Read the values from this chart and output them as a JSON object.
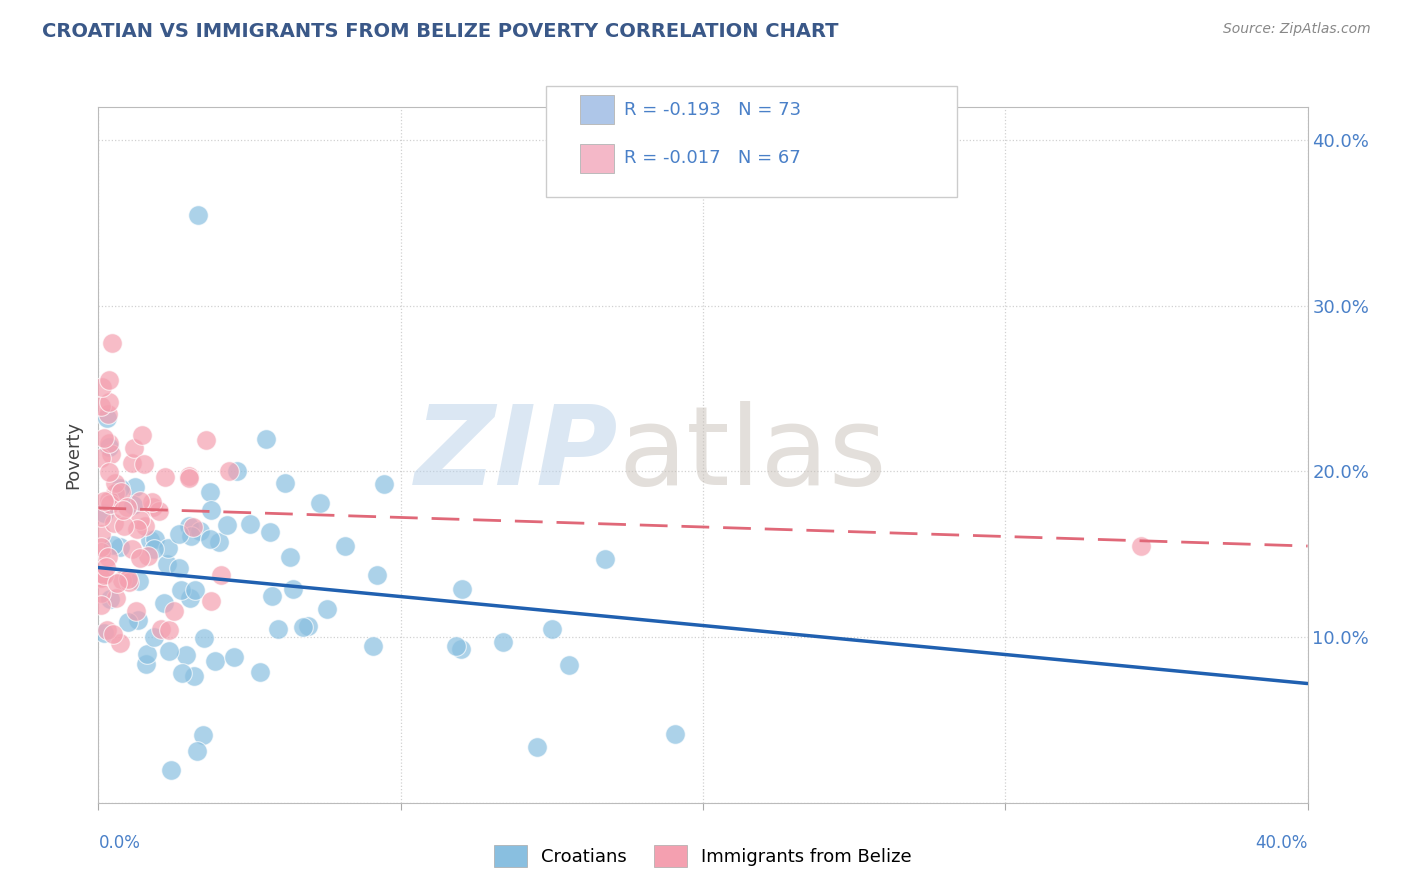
{
  "title": "CROATIAN VS IMMIGRANTS FROM BELIZE POVERTY CORRELATION CHART",
  "source": "Source: ZipAtlas.com",
  "ylabel": "Poverty",
  "xlim": [
    0.0,
    0.4
  ],
  "ylim": [
    0.0,
    0.42
  ],
  "croatian_color": "#89bfe0",
  "belize_color": "#f4a0b0",
  "blue_line_color": "#2060b0",
  "pink_line_color": "#e06878",
  "legend_box_color": "#aec6e8",
  "legend_pink_color": "#f4b8c8",
  "label_color": "#4a80c8",
  "title_color": "#3a5888",
  "source_color": "#888888",
  "watermark_zip_color": "#b8d0e8",
  "watermark_atlas_color": "#c8c0b8",
  "background_color": "#ffffff",
  "grid_color": "#cccccc",
  "right_ytick_color": "#4a80c8",
  "bottom_xtick_color": "#4a80c8"
}
